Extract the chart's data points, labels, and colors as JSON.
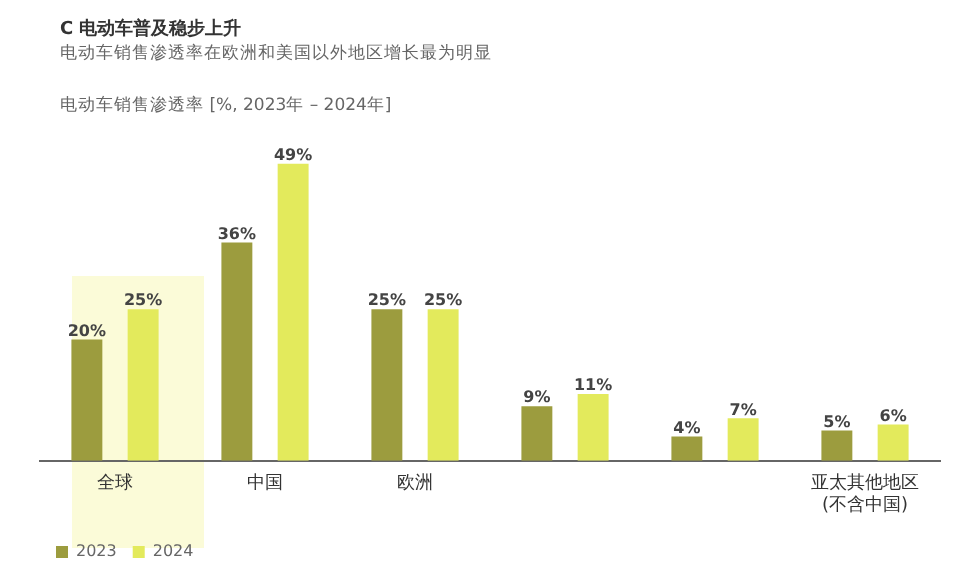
{
  "chart_data": {
    "type": "bar",
    "title": "C 电动车普及稳步上升",
    "subtitle": "电动车销售渗透率在欧洲和美国以外地区增长最为明显",
    "ylabel": "电动车销售渗透率 [%, 2023年 – 2024年]",
    "categories": [
      "全球",
      "中国",
      "欧洲",
      null,
      null,
      "亚太其他地区 (不含中国)"
    ],
    "series": [
      {
        "name": "2023",
        "color": "#9c9c3e",
        "values": [
          20,
          36,
          25,
          9,
          4,
          5
        ],
        "value_labels": [
          "20%",
          "36%",
          "25%",
          "9%",
          "4%",
          "5%"
        ]
      },
      {
        "name": "2024",
        "color": "#e3ea5c",
        "values": [
          25,
          49,
          25,
          11,
          7,
          6
        ],
        "value_labels": [
          "25%",
          "49%",
          "25%",
          "11%",
          "7%",
          "6%"
        ]
      }
    ],
    "tick_labels": "x",
    "legend": "bottom left",
    "grid": false
  }
}
